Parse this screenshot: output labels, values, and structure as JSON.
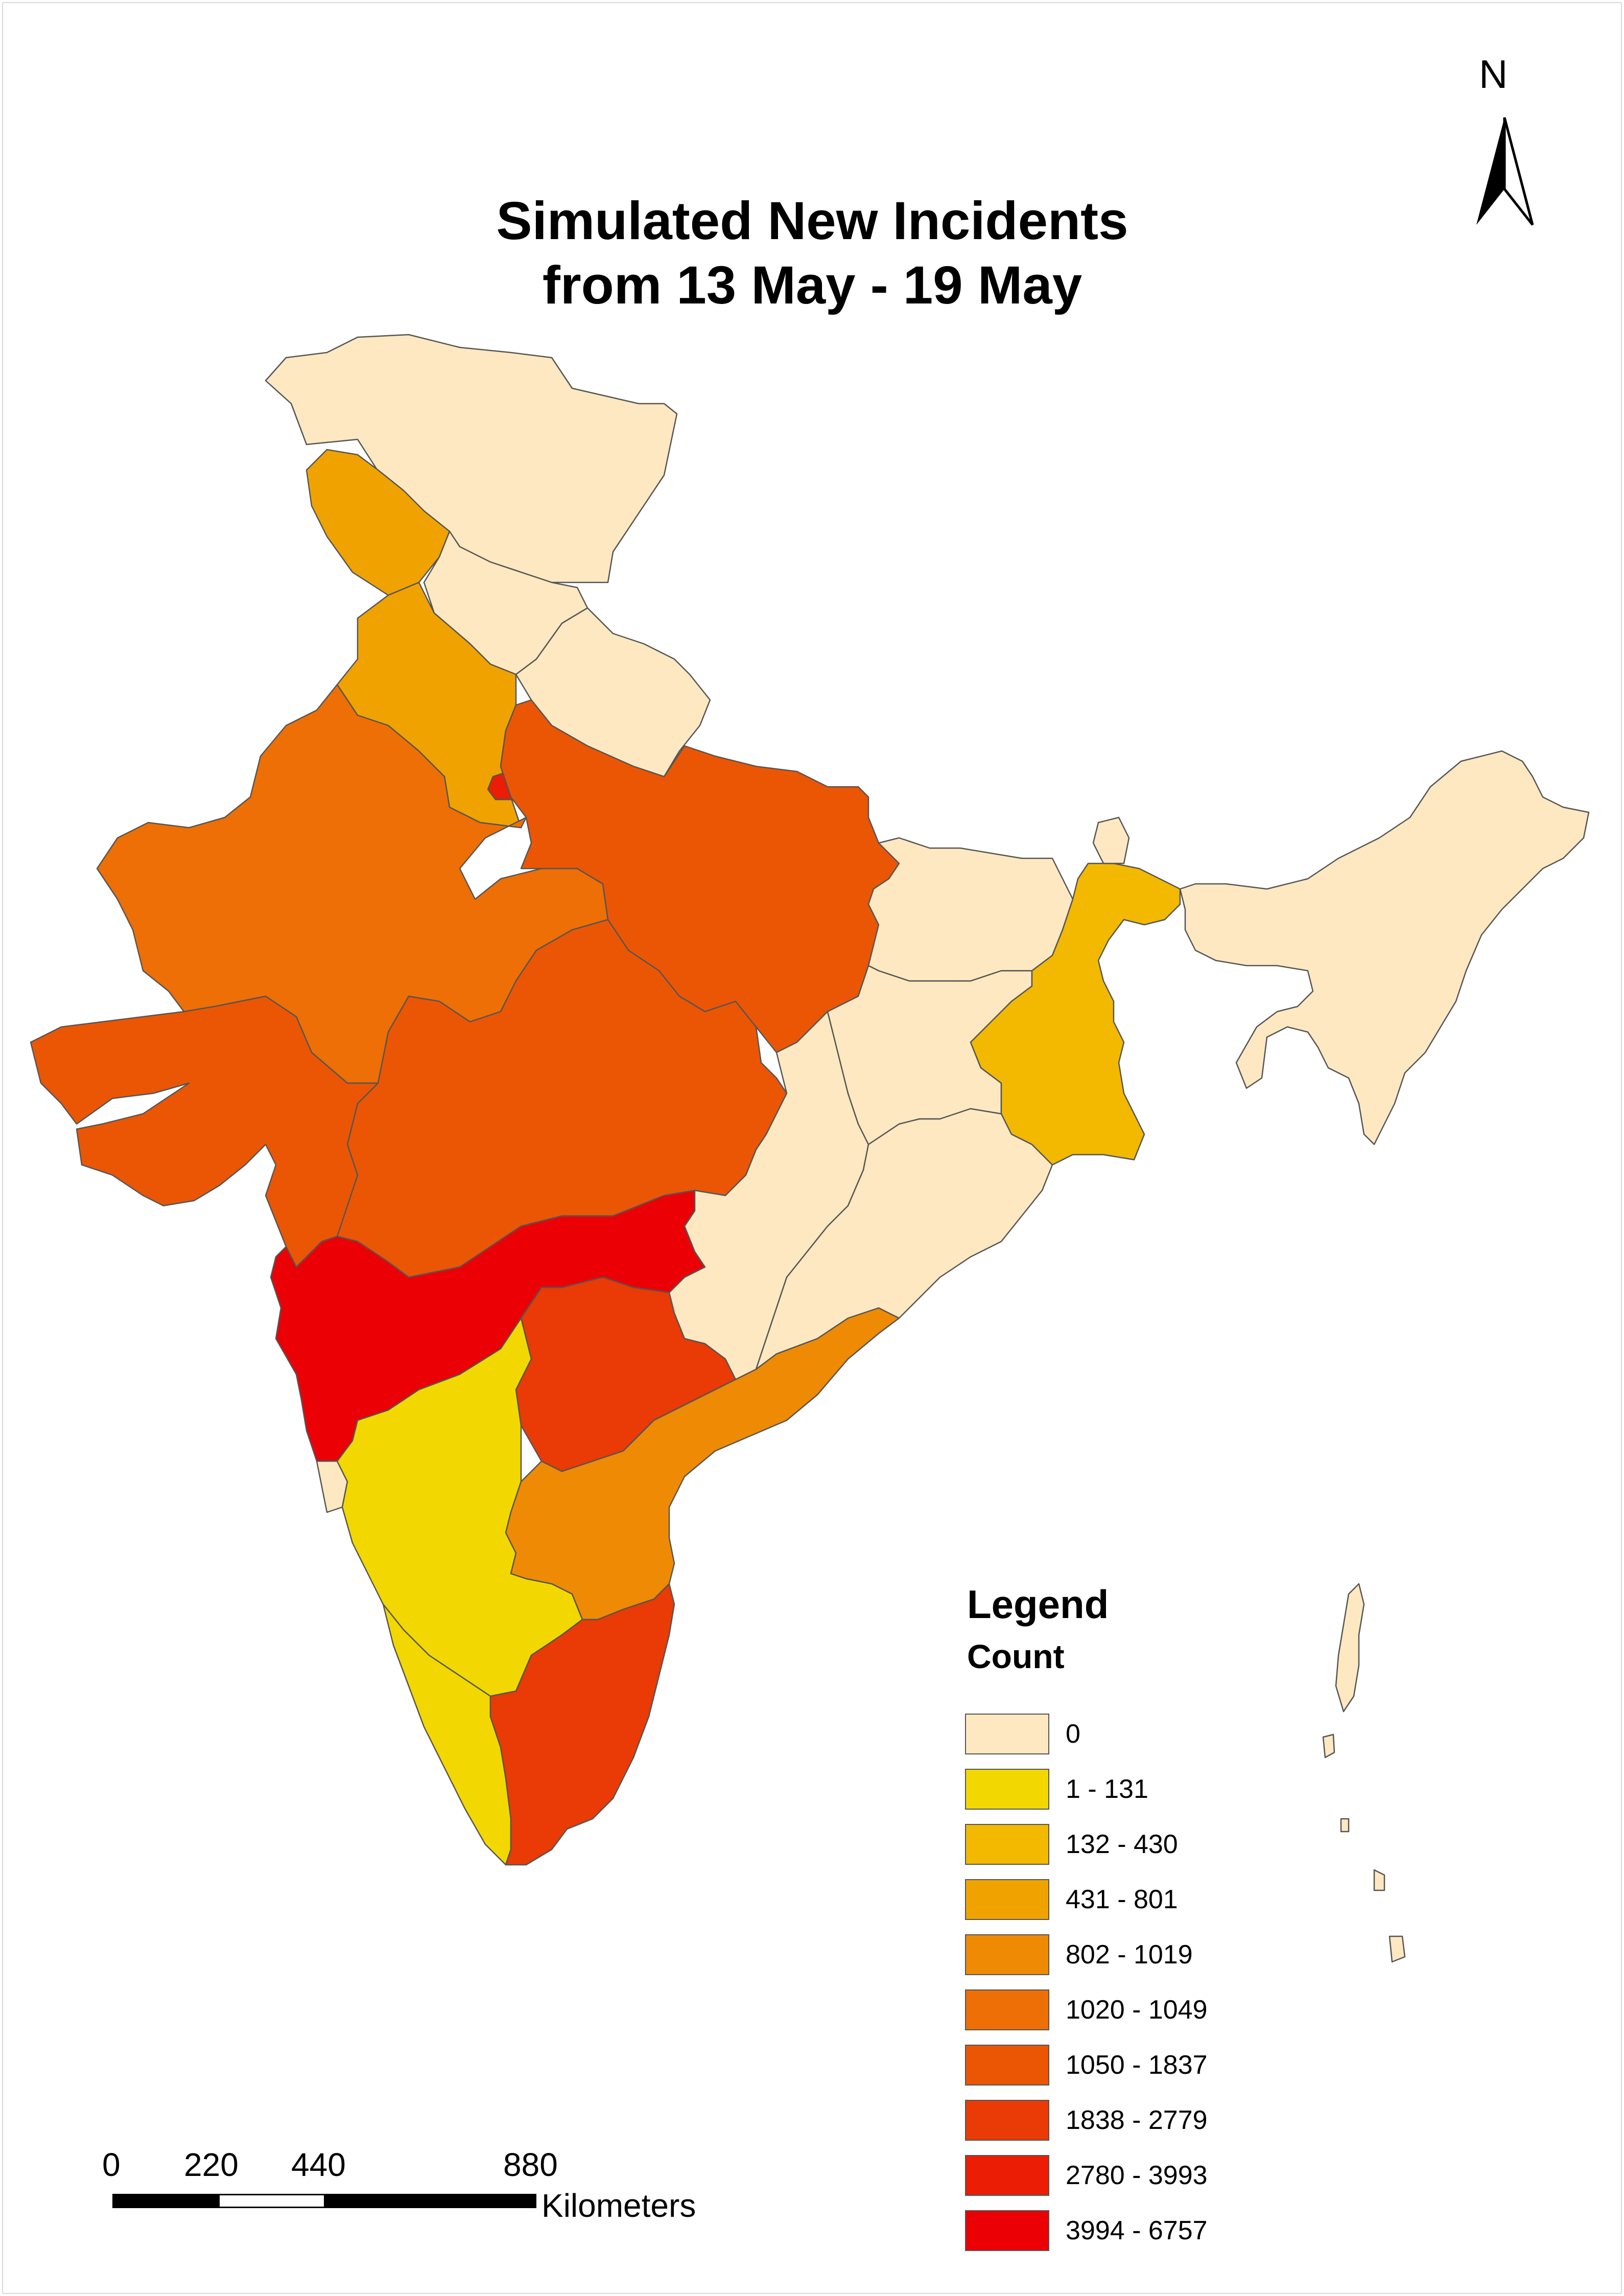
{
  "title": {
    "line1": "Simulated New Incidents",
    "line2": "from 13 May - 19 May"
  },
  "north_arrow": {
    "label": "N"
  },
  "legend": {
    "title": "Legend",
    "subtitle": "Count",
    "classes": [
      {
        "label": "0",
        "color": "#FDE8C1"
      },
      {
        "label": "1 - 131",
        "color": "#F2D800"
      },
      {
        "label": "132 - 430",
        "color": "#F2B900"
      },
      {
        "label": "431 - 801",
        "color": "#F0A300"
      },
      {
        "label": "802 - 1019",
        "color": "#EF8A05"
      },
      {
        "label": "1020 - 1049",
        "color": "#EE6F05"
      },
      {
        "label": "1050 - 1837",
        "color": "#EB5605"
      },
      {
        "label": "1838 - 2779",
        "color": "#EA3A05"
      },
      {
        "label": "2780 - 3993",
        "color": "#EB1D05"
      },
      {
        "label": "3994 - 6757",
        "color": "#EB0006"
      }
    ]
  },
  "scale_bar": {
    "ticks": [
      "0",
      "220",
      "440",
      "880"
    ],
    "units": "Kilometers"
  },
  "regions": [
    {
      "name": "Jammu and Kashmir",
      "class": 0
    },
    {
      "name": "Ladakh",
      "class": 0
    },
    {
      "name": "Himachal Pradesh",
      "class": 0
    },
    {
      "name": "Uttarakhand",
      "class": 0
    },
    {
      "name": "Punjab",
      "class": 3
    },
    {
      "name": "Haryana",
      "class": 3
    },
    {
      "name": "Delhi",
      "class": 8
    },
    {
      "name": "Rajasthan",
      "class": 5
    },
    {
      "name": "Uttar Pradesh",
      "class": 6
    },
    {
      "name": "Madhya Pradesh",
      "class": 6
    },
    {
      "name": "Gujarat",
      "class": 6
    },
    {
      "name": "Maharashtra",
      "class": 9
    },
    {
      "name": "Goa",
      "class": 0
    },
    {
      "name": "Karnataka",
      "class": 1
    },
    {
      "name": "Kerala",
      "class": 1
    },
    {
      "name": "Telangana",
      "class": 7
    },
    {
      "name": "Andhra Pradesh",
      "class": 4
    },
    {
      "name": "Tamil Nadu",
      "class": 7
    },
    {
      "name": "Bihar",
      "class": 0
    },
    {
      "name": "Jharkhand",
      "class": 0
    },
    {
      "name": "Chhattisgarh",
      "class": 0
    },
    {
      "name": "Odisha",
      "class": 0
    },
    {
      "name": "West Bengal",
      "class": 2
    },
    {
      "name": "Sikkim",
      "class": 0
    },
    {
      "name": "Northeast",
      "class": 0
    },
    {
      "name": "Andaman and Nicobar",
      "class": 0
    }
  ]
}
